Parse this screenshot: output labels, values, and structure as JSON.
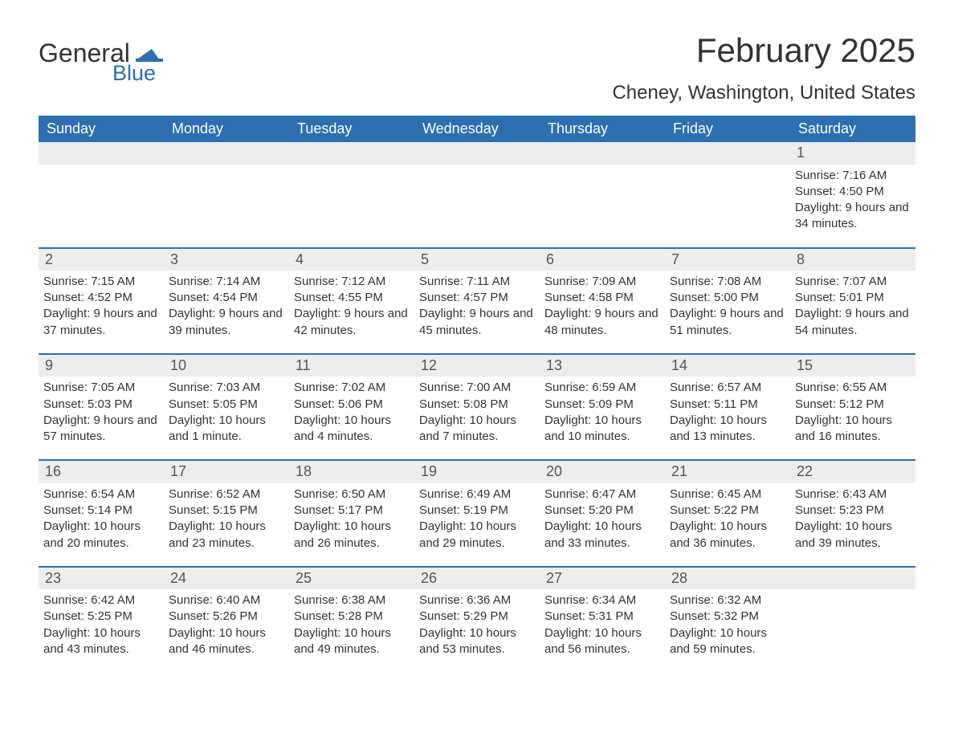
{
  "brand": {
    "word1": "General",
    "word2": "Blue"
  },
  "colors": {
    "accent": "#2d6fb0",
    "row_header_bg": "#ededed",
    "background": "#ffffff",
    "text": "#333333"
  },
  "title": "February 2025",
  "location": "Cheney, Washington, United States",
  "daysOfWeek": [
    "Sunday",
    "Monday",
    "Tuesday",
    "Wednesday",
    "Thursday",
    "Friday",
    "Saturday"
  ],
  "weeks": [
    [
      null,
      null,
      null,
      null,
      null,
      null,
      {
        "n": "1",
        "sunrise": "Sunrise: 7:16 AM",
        "sunset": "Sunset: 4:50 PM",
        "daylight": "Daylight: 9 hours and 34 minutes."
      }
    ],
    [
      {
        "n": "2",
        "sunrise": "Sunrise: 7:15 AM",
        "sunset": "Sunset: 4:52 PM",
        "daylight": "Daylight: 9 hours and 37 minutes."
      },
      {
        "n": "3",
        "sunrise": "Sunrise: 7:14 AM",
        "sunset": "Sunset: 4:54 PM",
        "daylight": "Daylight: 9 hours and 39 minutes."
      },
      {
        "n": "4",
        "sunrise": "Sunrise: 7:12 AM",
        "sunset": "Sunset: 4:55 PM",
        "daylight": "Daylight: 9 hours and 42 minutes."
      },
      {
        "n": "5",
        "sunrise": "Sunrise: 7:11 AM",
        "sunset": "Sunset: 4:57 PM",
        "daylight": "Daylight: 9 hours and 45 minutes."
      },
      {
        "n": "6",
        "sunrise": "Sunrise: 7:09 AM",
        "sunset": "Sunset: 4:58 PM",
        "daylight": "Daylight: 9 hours and 48 minutes."
      },
      {
        "n": "7",
        "sunrise": "Sunrise: 7:08 AM",
        "sunset": "Sunset: 5:00 PM",
        "daylight": "Daylight: 9 hours and 51 minutes."
      },
      {
        "n": "8",
        "sunrise": "Sunrise: 7:07 AM",
        "sunset": "Sunset: 5:01 PM",
        "daylight": "Daylight: 9 hours and 54 minutes."
      }
    ],
    [
      {
        "n": "9",
        "sunrise": "Sunrise: 7:05 AM",
        "sunset": "Sunset: 5:03 PM",
        "daylight": "Daylight: 9 hours and 57 minutes."
      },
      {
        "n": "10",
        "sunrise": "Sunrise: 7:03 AM",
        "sunset": "Sunset: 5:05 PM",
        "daylight": "Daylight: 10 hours and 1 minute."
      },
      {
        "n": "11",
        "sunrise": "Sunrise: 7:02 AM",
        "sunset": "Sunset: 5:06 PM",
        "daylight": "Daylight: 10 hours and 4 minutes."
      },
      {
        "n": "12",
        "sunrise": "Sunrise: 7:00 AM",
        "sunset": "Sunset: 5:08 PM",
        "daylight": "Daylight: 10 hours and 7 minutes."
      },
      {
        "n": "13",
        "sunrise": "Sunrise: 6:59 AM",
        "sunset": "Sunset: 5:09 PM",
        "daylight": "Daylight: 10 hours and 10 minutes."
      },
      {
        "n": "14",
        "sunrise": "Sunrise: 6:57 AM",
        "sunset": "Sunset: 5:11 PM",
        "daylight": "Daylight: 10 hours and 13 minutes."
      },
      {
        "n": "15",
        "sunrise": "Sunrise: 6:55 AM",
        "sunset": "Sunset: 5:12 PM",
        "daylight": "Daylight: 10 hours and 16 minutes."
      }
    ],
    [
      {
        "n": "16",
        "sunrise": "Sunrise: 6:54 AM",
        "sunset": "Sunset: 5:14 PM",
        "daylight": "Daylight: 10 hours and 20 minutes."
      },
      {
        "n": "17",
        "sunrise": "Sunrise: 6:52 AM",
        "sunset": "Sunset: 5:15 PM",
        "daylight": "Daylight: 10 hours and 23 minutes."
      },
      {
        "n": "18",
        "sunrise": "Sunrise: 6:50 AM",
        "sunset": "Sunset: 5:17 PM",
        "daylight": "Daylight: 10 hours and 26 minutes."
      },
      {
        "n": "19",
        "sunrise": "Sunrise: 6:49 AM",
        "sunset": "Sunset: 5:19 PM",
        "daylight": "Daylight: 10 hours and 29 minutes."
      },
      {
        "n": "20",
        "sunrise": "Sunrise: 6:47 AM",
        "sunset": "Sunset: 5:20 PM",
        "daylight": "Daylight: 10 hours and 33 minutes."
      },
      {
        "n": "21",
        "sunrise": "Sunrise: 6:45 AM",
        "sunset": "Sunset: 5:22 PM",
        "daylight": "Daylight: 10 hours and 36 minutes."
      },
      {
        "n": "22",
        "sunrise": "Sunrise: 6:43 AM",
        "sunset": "Sunset: 5:23 PM",
        "daylight": "Daylight: 10 hours and 39 minutes."
      }
    ],
    [
      {
        "n": "23",
        "sunrise": "Sunrise: 6:42 AM",
        "sunset": "Sunset: 5:25 PM",
        "daylight": "Daylight: 10 hours and 43 minutes."
      },
      {
        "n": "24",
        "sunrise": "Sunrise: 6:40 AM",
        "sunset": "Sunset: 5:26 PM",
        "daylight": "Daylight: 10 hours and 46 minutes."
      },
      {
        "n": "25",
        "sunrise": "Sunrise: 6:38 AM",
        "sunset": "Sunset: 5:28 PM",
        "daylight": "Daylight: 10 hours and 49 minutes."
      },
      {
        "n": "26",
        "sunrise": "Sunrise: 6:36 AM",
        "sunset": "Sunset: 5:29 PM",
        "daylight": "Daylight: 10 hours and 53 minutes."
      },
      {
        "n": "27",
        "sunrise": "Sunrise: 6:34 AM",
        "sunset": "Sunset: 5:31 PM",
        "daylight": "Daylight: 10 hours and 56 minutes."
      },
      {
        "n": "28",
        "sunrise": "Sunrise: 6:32 AM",
        "sunset": "Sunset: 5:32 PM",
        "daylight": "Daylight: 10 hours and 59 minutes."
      },
      null
    ]
  ]
}
